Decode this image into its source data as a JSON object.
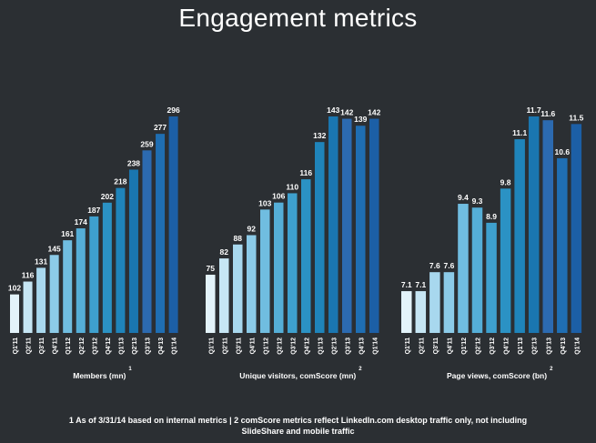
{
  "title": "Engagement metrics",
  "chart_data": [
    {
      "type": "bar",
      "xlabel": "Members (mn)",
      "footnote_ref": "1",
      "categories": [
        "Q1'11",
        "Q2'11",
        "Q3'11",
        "Q4'11",
        "Q1'12",
        "Q2'12",
        "Q3'12",
        "Q4'12",
        "Q1'13",
        "Q2'13",
        "Q3'13",
        "Q4'13",
        "Q1'14"
      ],
      "values": [
        102,
        116,
        131,
        145,
        161,
        174,
        187,
        202,
        218,
        238,
        259,
        277,
        296
      ],
      "value_labels": [
        "102",
        "116",
        "131",
        "145",
        "161",
        "174",
        "187",
        "202",
        "218",
        "238",
        "259",
        "277",
        "296"
      ],
      "ylim": [
        60,
        296
      ]
    },
    {
      "type": "bar",
      "xlabel": "Unique visitors, comScore (mn)",
      "footnote_ref": "2",
      "categories": [
        "Q1'11",
        "Q2'11",
        "Q3'11",
        "Q4'11",
        "Q1'12",
        "Q2'12",
        "Q3'12",
        "Q4'12",
        "Q1'13",
        "Q2'13",
        "Q3'13",
        "Q4'13",
        "Q1'14"
      ],
      "values": [
        75,
        82,
        88,
        92,
        103,
        106,
        110,
        116,
        132,
        143,
        142,
        139,
        142
      ],
      "value_labels": [
        "75",
        "82",
        "88",
        "92",
        "103",
        "106",
        "110",
        "116",
        "132",
        "143",
        "142",
        "139",
        "142"
      ],
      "ylim": [
        50,
        143
      ]
    },
    {
      "type": "bar",
      "xlabel": "Page views, comScore (bn)",
      "footnote_ref": "2",
      "categories": [
        "Q1'11",
        "Q2'11",
        "Q3'11",
        "Q4'11",
        "Q1'12",
        "Q2'12",
        "Q3'12",
        "Q4'12",
        "Q1'13",
        "Q2'13",
        "Q3'13",
        "Q4'13",
        "Q1'14"
      ],
      "values": [
        7.1,
        7.1,
        7.6,
        7.6,
        9.4,
        9.3,
        8.9,
        9.8,
        11.1,
        11.7,
        11.6,
        10.6,
        11.5
      ],
      "value_labels": [
        "7.1",
        "7.1",
        "7.6",
        "7.6",
        "9.4",
        "9.3",
        "8.9",
        "9.8",
        "11.1",
        "11.7",
        "11.6",
        "10.6",
        "11.5"
      ],
      "ylim": [
        6.0,
        11.7
      ]
    }
  ],
  "bar_colors": [
    "#e3f3fa",
    "#c6e6f4",
    "#a8d8ee",
    "#8ccbe8",
    "#70bde0",
    "#55aed7",
    "#3ea0ce",
    "#2b92c4",
    "#1f84ba",
    "#1a76b0",
    "#2c6ab0",
    "#1f6eb2",
    "#1c5fa6"
  ],
  "footnote_lines": [
    "1 As of 3/31/14 based on internal metrics | 2 comScore metrics reflect LinkedIn.com desktop traffic only, not including",
    "SlideShare and mobile traffic"
  ]
}
